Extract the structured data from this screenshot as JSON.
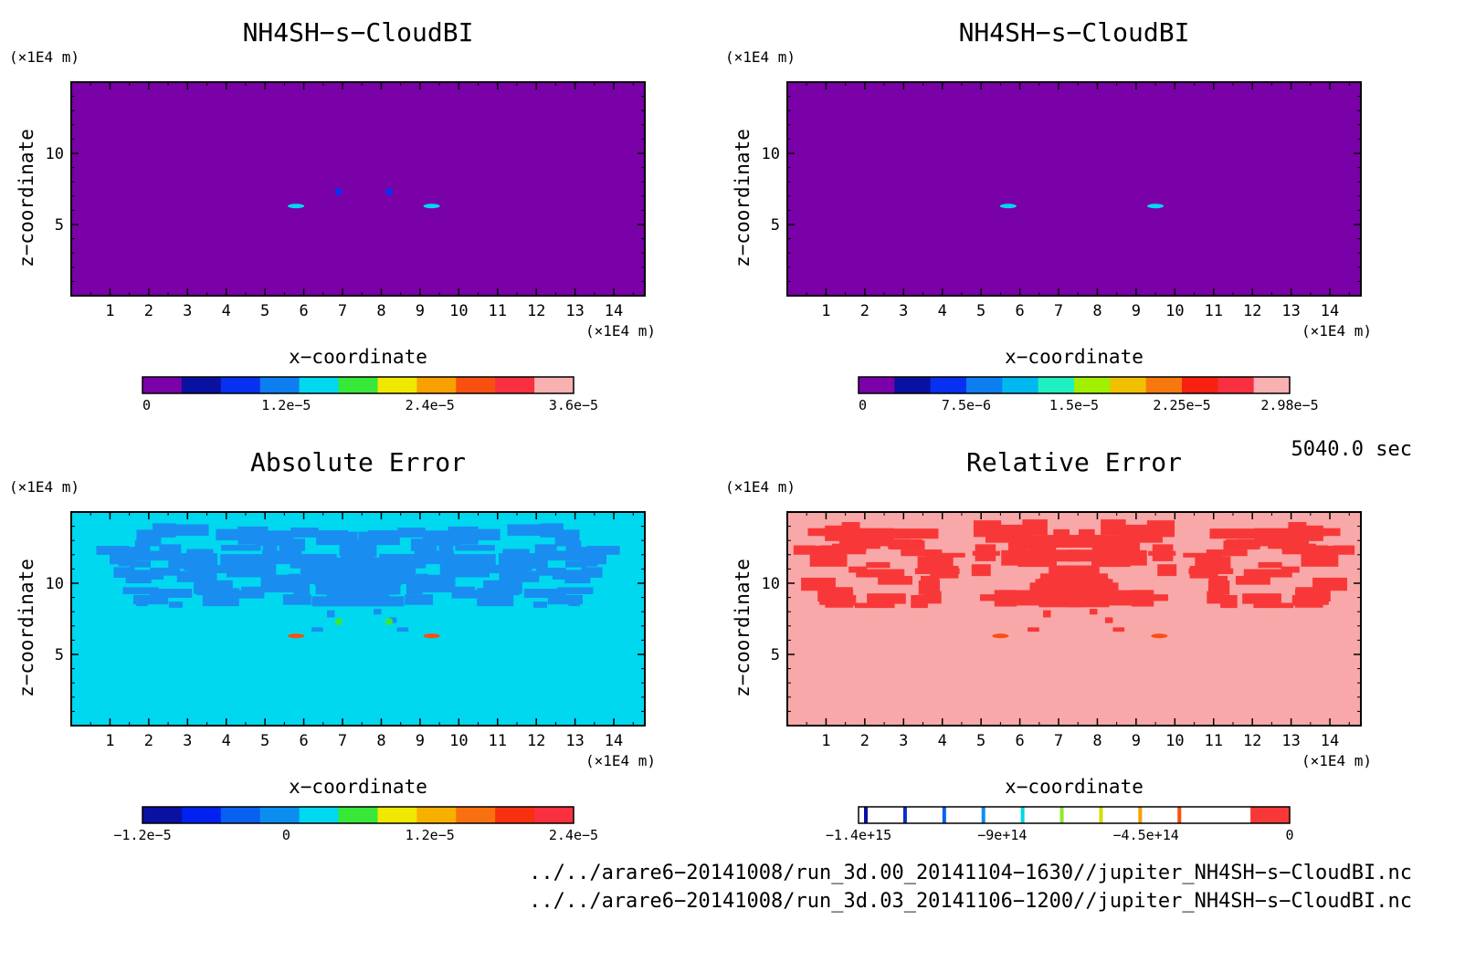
{
  "chart_data": [
    {
      "type": "heatmap",
      "title": "NH4SH−s−CloudBI",
      "xlabel": "x−coordinate",
      "ylabel": "z−coordinate",
      "x_unit": "(×1E4 m)",
      "y_unit": "(×1E4 m)",
      "xlim": [
        0,
        14.8
      ],
      "ylim": [
        0,
        15
      ],
      "x_ticks": [
        "1",
        "2",
        "3",
        "4",
        "5",
        "6",
        "7",
        "8",
        "9",
        "10",
        "11",
        "12",
        "13",
        "14"
      ],
      "y_ticks": [
        "5",
        "10"
      ],
      "background_color": "#7a00a8",
      "colorbar": {
        "colors": [
          "#7a00a8",
          "#0a10a0",
          "#0830f0",
          "#0c7ef0",
          "#00d8f0",
          "#38e838",
          "#f0e800",
          "#f8a000",
          "#f85010",
          "#f83040",
          "#f8b0b0"
        ],
        "labels": [
          "0",
          "1.2e−5",
          "2.4e−5",
          "3.6e−5"
        ]
      },
      "features": [
        {
          "x": 5.8,
          "y": 6.3,
          "color": "#00d8f0"
        },
        {
          "x": 9.3,
          "y": 6.3,
          "color": "#00d8f0"
        },
        {
          "x": 6.9,
          "y": 7.3,
          "color": "#0830f0"
        },
        {
          "x": 8.2,
          "y": 7.3,
          "color": "#0830f0"
        }
      ]
    },
    {
      "type": "heatmap",
      "title": "NH4SH−s−CloudBI",
      "xlabel": "x−coordinate",
      "ylabel": "z−coordinate",
      "x_unit": "(×1E4 m)",
      "y_unit": "(×1E4 m)",
      "xlim": [
        0,
        14.8
      ],
      "ylim": [
        0,
        15
      ],
      "x_ticks": [
        "1",
        "2",
        "3",
        "4",
        "5",
        "6",
        "7",
        "8",
        "9",
        "10",
        "11",
        "12",
        "13",
        "14"
      ],
      "y_ticks": [
        "5",
        "10"
      ],
      "background_color": "#7a00a8",
      "colorbar": {
        "colors": [
          "#7a00a8",
          "#0a10a0",
          "#0830f0",
          "#0c7ef0",
          "#00b8f0",
          "#20f0c0",
          "#a0f000",
          "#f0c000",
          "#f87810",
          "#f82010",
          "#f83040",
          "#f8b0b0"
        ],
        "labels": [
          "0",
          "7.5e−6",
          "1.5e−5",
          "2.25e−5",
          "2.98e−5"
        ]
      },
      "features": [
        {
          "x": 5.7,
          "y": 6.3,
          "color": "#00d8f0"
        },
        {
          "x": 9.5,
          "y": 6.3,
          "color": "#00d8f0"
        }
      ]
    },
    {
      "type": "heatmap",
      "title": "Absolute Error",
      "xlabel": "x−coordinate",
      "ylabel": "z−coordinate",
      "x_unit": "(×1E4 m)",
      "y_unit": "(×1E4 m)",
      "xlim": [
        0,
        14.8
      ],
      "ylim": [
        0,
        15
      ],
      "x_ticks": [
        "1",
        "2",
        "3",
        "4",
        "5",
        "6",
        "7",
        "8",
        "9",
        "10",
        "11",
        "12",
        "13",
        "14"
      ],
      "y_ticks": [
        "5",
        "10"
      ],
      "background_color": "#00d8f0",
      "pattern_color": "#1a8ef0",
      "colorbar": {
        "colors": [
          "#0a10a0",
          "#0020f0",
          "#0860f0",
          "#0c8ef0",
          "#00d8f0",
          "#38e838",
          "#f0e800",
          "#f8b000",
          "#f87010",
          "#f83010",
          "#f83040"
        ],
        "labels": [
          "−1.2e−5",
          "0",
          "1.2e−5",
          "2.4e−5"
        ]
      },
      "features": [
        {
          "x": 5.8,
          "y": 6.3,
          "color": "#f85010"
        },
        {
          "x": 9.3,
          "y": 6.3,
          "color": "#f85010"
        },
        {
          "x": 6.9,
          "y": 7.3,
          "color": "#38e838"
        },
        {
          "x": 8.2,
          "y": 7.3,
          "color": "#38e838"
        }
      ]
    },
    {
      "type": "heatmap",
      "title": "Relative Error",
      "xlabel": "x−coordinate",
      "ylabel": "z−coordinate",
      "x_unit": "(×1E4 m)",
      "y_unit": "(×1E4 m)",
      "xlim": [
        0,
        14.8
      ],
      "ylim": [
        0,
        15
      ],
      "x_ticks": [
        "1",
        "2",
        "3",
        "4",
        "5",
        "6",
        "7",
        "8",
        "9",
        "10",
        "11",
        "12",
        "13",
        "14"
      ],
      "y_ticks": [
        "5",
        "10"
      ],
      "background_color": "#f8a8a8",
      "pattern_color": "#f83838",
      "colorbar": {
        "colors": [
          "#ffffff",
          "#ffffff",
          "#ffffff",
          "#ffffff",
          "#ffffff",
          "#ffffff",
          "#ffffff",
          "#ffffff",
          "#ffffff",
          "#ffffff",
          "#f83838"
        ],
        "stripes": [
          "#0a10a0",
          "#0830c0",
          "#0860f0",
          "#0c8ef0",
          "#00d8e0",
          "#90e830",
          "#d0e000",
          "#f8a000",
          "#f85010"
        ],
        "labels": [
          "−1.4e+15",
          "−9e+14",
          "−4.5e+14",
          "0"
        ]
      },
      "features": [
        {
          "x": 5.5,
          "y": 6.3,
          "color": "#f85010"
        },
        {
          "x": 9.6,
          "y": 6.3,
          "color": "#f85010"
        }
      ]
    }
  ],
  "time_label": "5040.0 sec",
  "footer": {
    "file1": "../../arare6−20141008/run_3d.00_20141104−1630//jupiter_NH4SH−s−CloudBI.nc",
    "file2": "../../arare6−20141008/run_3d.03_20141106−1200//jupiter_NH4SH−s−CloudBI.nc"
  }
}
